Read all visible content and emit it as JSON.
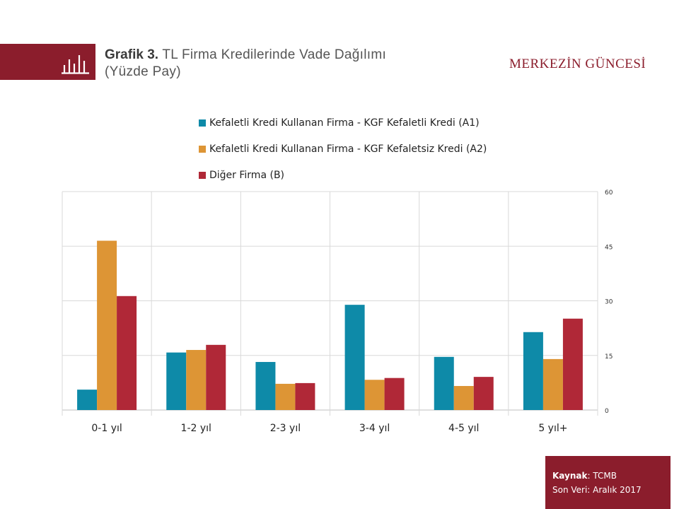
{
  "header": {
    "chart_label": "Grafik 3.",
    "title_line1": "TL Firma Kredilerinde  Vade Dağılımı",
    "title_line2": "(Yüzde Pay)",
    "brand": "MERKEZİN GÜNCESİ",
    "icon": "bar-chart-icon"
  },
  "colors": {
    "brand": "#8b1d2c",
    "series_a1": "#0e8aa8",
    "series_a2": "#dd9535",
    "series_b": "#b02837",
    "grid": "#d9d9d9"
  },
  "chart_data": {
    "type": "bar",
    "categories": [
      "0-1 yıl",
      "1-2 yıl",
      "2-3 yıl",
      "3-4 yıl",
      "4-5 yıl",
      "5 yıl+"
    ],
    "series": [
      {
        "name": "Kefaletli Kredi Kullanan Firma - KGF Kefaletli Kredi (A1)",
        "values": [
          5.6,
          15.8,
          13.2,
          28.9,
          14.6,
          21.4
        ]
      },
      {
        "name": "Kefaletli Kredi Kullanan Firma - KGF Kefaletsiz Kredi (A2)",
        "values": [
          46.5,
          16.5,
          7.2,
          8.3,
          6.6,
          14.0
        ]
      },
      {
        "name": "Diğer Firma (B)",
        "values": [
          31.3,
          17.9,
          7.4,
          8.8,
          9.1,
          25.1
        ]
      }
    ],
    "ylim": [
      0,
      60
    ],
    "yticks": [
      "0",
      "15",
      "30",
      "45",
      "60"
    ],
    "y_axis_position": "right",
    "legend_position": "top",
    "grid": true
  },
  "source": {
    "label": "Kaynak",
    "value": ": TCMB",
    "last_data": "Son Veri: Aralık 2017"
  }
}
